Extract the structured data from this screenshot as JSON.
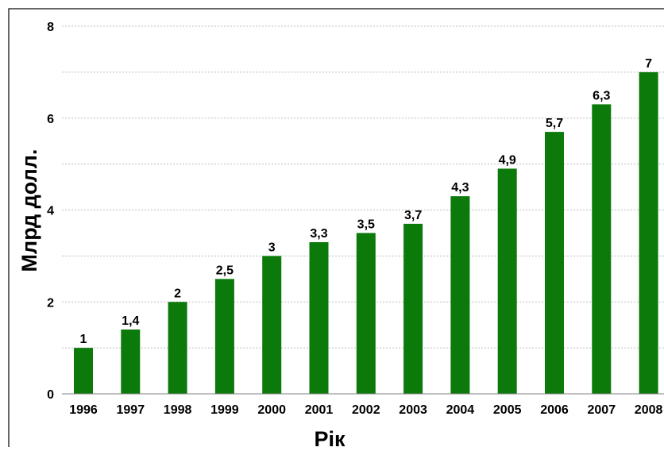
{
  "chart_data": {
    "type": "bar",
    "title": "",
    "xlabel": "Рік",
    "ylabel": "Млрд долл.",
    "categories": [
      "1996",
      "1997",
      "1998",
      "1999",
      "2000",
      "2001",
      "2002",
      "2003",
      "2004",
      "2005",
      "2006",
      "2007",
      "2008"
    ],
    "values": [
      1,
      1.4,
      2,
      2.5,
      3,
      3.3,
      3.5,
      3.7,
      4.3,
      4.9,
      5.7,
      6.3,
      7
    ],
    "value_labels": [
      "1",
      "1,4",
      "2",
      "2,5",
      "3",
      "3,3",
      "3,5",
      "3,7",
      "4,3",
      "4,9",
      "5,7",
      "6,3",
      "7"
    ],
    "ylim": [
      0,
      8
    ],
    "yticks": [
      0,
      2,
      4,
      6,
      8
    ],
    "grid": true,
    "legend": "none",
    "colors": {
      "bar": "#0b7a0b",
      "grid": "#bdbdbd",
      "axis": "#808080",
      "frame": "#000000"
    }
  }
}
